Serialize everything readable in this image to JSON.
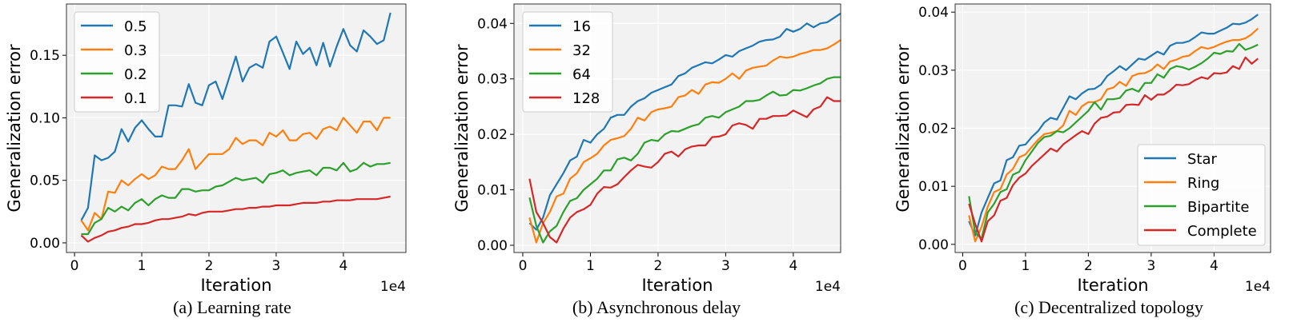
{
  "colors": {
    "c0": "#1f77b4",
    "c1": "#ff7f0e",
    "c2": "#2ca02c",
    "c3": "#d62728",
    "plot_bg": "#f2f2f2"
  },
  "chart_data": [
    {
      "type": "line",
      "caption": "(a) Learning rate",
      "xlabel": "Iteration",
      "ylabel": "Generalization error",
      "x_scale_label": "1e4",
      "xlim": [
        -0.12,
        4.93
      ],
      "ylim": [
        -0.0077,
        0.191
      ],
      "xticks": [
        0,
        1,
        2,
        3,
        4
      ],
      "xtick_labels": [
        "0",
        "1",
        "2",
        "3",
        "4"
      ],
      "yticks": [
        0,
        0.05,
        0.1,
        0.15
      ],
      "ytick_labels": [
        "0.00",
        "0.05",
        "0.10",
        "0.15"
      ],
      "legend_position": "upper-left",
      "grid": true,
      "x_step": 0.1,
      "x_start": 0.1,
      "series": [
        {
          "name": "0.5",
          "values": [
            0.018,
            0.028,
            0.07,
            0.066,
            0.068,
            0.073,
            0.091,
            0.081,
            0.092,
            0.098,
            0.091,
            0.085,
            0.085,
            0.11,
            0.11,
            0.109,
            0.127,
            0.112,
            0.11,
            0.126,
            0.129,
            0.115,
            0.132,
            0.149,
            0.129,
            0.14,
            0.143,
            0.14,
            0.161,
            0.165,
            0.152,
            0.139,
            0.161,
            0.151,
            0.156,
            0.142,
            0.16,
            0.141,
            0.157,
            0.171,
            0.158,
            0.153,
            0.17,
            0.165,
            0.159,
            0.162,
            0.184
          ]
        },
        {
          "name": "0.3",
          "values": [
            0.018,
            0.01,
            0.024,
            0.019,
            0.041,
            0.04,
            0.05,
            0.046,
            0.051,
            0.055,
            0.051,
            0.054,
            0.061,
            0.059,
            0.059,
            0.066,
            0.075,
            0.059,
            0.065,
            0.071,
            0.071,
            0.071,
            0.075,
            0.084,
            0.079,
            0.082,
            0.082,
            0.078,
            0.088,
            0.085,
            0.09,
            0.082,
            0.082,
            0.087,
            0.088,
            0.083,
            0.091,
            0.093,
            0.09,
            0.1,
            0.094,
            0.088,
            0.097,
            0.097,
            0.09,
            0.1,
            0.1
          ]
        },
        {
          "name": "0.2",
          "values": [
            0.007,
            0.007,
            0.016,
            0.019,
            0.028,
            0.025,
            0.029,
            0.026,
            0.032,
            0.035,
            0.03,
            0.035,
            0.038,
            0.036,
            0.036,
            0.043,
            0.043,
            0.041,
            0.042,
            0.042,
            0.045,
            0.046,
            0.049,
            0.052,
            0.05,
            0.051,
            0.052,
            0.048,
            0.055,
            0.056,
            0.058,
            0.054,
            0.056,
            0.057,
            0.058,
            0.054,
            0.06,
            0.06,
            0.058,
            0.064,
            0.057,
            0.059,
            0.064,
            0.061,
            0.063,
            0.063,
            0.064
          ]
        },
        {
          "name": "0.1",
          "values": [
            0.006,
            0.001,
            0.004,
            0.006,
            0.009,
            0.01,
            0.012,
            0.013,
            0.015,
            0.015,
            0.016,
            0.018,
            0.019,
            0.019,
            0.02,
            0.021,
            0.023,
            0.022,
            0.024,
            0.025,
            0.025,
            0.025,
            0.026,
            0.027,
            0.027,
            0.028,
            0.028,
            0.029,
            0.029,
            0.03,
            0.03,
            0.03,
            0.031,
            0.032,
            0.032,
            0.032,
            0.033,
            0.033,
            0.034,
            0.034,
            0.034,
            0.035,
            0.035,
            0.035,
            0.035,
            0.036,
            0.037
          ]
        }
      ]
    },
    {
      "type": "line",
      "caption": "(b) Asynchronous delay",
      "xlabel": "Iteration",
      "ylabel": "Generalization error",
      "x_scale_label": "1e4",
      "xlim": [
        -0.13,
        4.7
      ],
      "ylim": [
        -0.0013,
        0.0435
      ],
      "xticks": [
        0,
        1,
        2,
        3,
        4
      ],
      "xtick_labels": [
        "0",
        "1",
        "2",
        "3",
        "4"
      ],
      "yticks": [
        0,
        0.01,
        0.02,
        0.03,
        0.04
      ],
      "ytick_labels": [
        "0.00",
        "0.01",
        "0.02",
        "0.03",
        "0.04"
      ],
      "legend_position": "upper-left",
      "grid": true,
      "x_step": 0.1,
      "x_start": 0.1,
      "series": [
        {
          "name": "16",
          "values": [
            0.004,
            0.0028,
            0.005,
            0.009,
            0.011,
            0.013,
            0.0153,
            0.016,
            0.019,
            0.0185,
            0.02,
            0.021,
            0.023,
            0.0235,
            0.0235,
            0.025,
            0.026,
            0.0265,
            0.0275,
            0.028,
            0.0285,
            0.029,
            0.0305,
            0.031,
            0.032,
            0.0325,
            0.033,
            0.0328,
            0.0335,
            0.0343,
            0.034,
            0.035,
            0.0355,
            0.036,
            0.0367,
            0.037,
            0.0371,
            0.0376,
            0.039,
            0.0385,
            0.039,
            0.04,
            0.0393,
            0.04,
            0.0402,
            0.041,
            0.0418
          ]
        },
        {
          "name": "32",
          "values": [
            0.005,
            0.0005,
            0.004,
            0.006,
            0.0088,
            0.0093,
            0.012,
            0.013,
            0.015,
            0.0157,
            0.0165,
            0.018,
            0.019,
            0.0193,
            0.0197,
            0.021,
            0.023,
            0.0225,
            0.024,
            0.0245,
            0.0247,
            0.025,
            0.0267,
            0.027,
            0.028,
            0.0273,
            0.029,
            0.0294,
            0.0293,
            0.03,
            0.031,
            0.03,
            0.0315,
            0.032,
            0.0322,
            0.0324,
            0.0333,
            0.034,
            0.0338,
            0.034,
            0.0345,
            0.0348,
            0.0352,
            0.0352,
            0.0355,
            0.0362,
            0.037
          ]
        },
        {
          "name": "64",
          "values": [
            0.0086,
            0.0035,
            0.0005,
            0.0025,
            0.0035,
            0.006,
            0.008,
            0.0085,
            0.01,
            0.011,
            0.012,
            0.0135,
            0.0135,
            0.0155,
            0.0158,
            0.0153,
            0.0165,
            0.0185,
            0.019,
            0.0188,
            0.02,
            0.0206,
            0.0205,
            0.021,
            0.0215,
            0.0218,
            0.023,
            0.0233,
            0.023,
            0.024,
            0.0245,
            0.025,
            0.026,
            0.026,
            0.0262,
            0.027,
            0.0277,
            0.027,
            0.0271,
            0.028,
            0.0279,
            0.0283,
            0.0288,
            0.0292,
            0.03,
            0.0303,
            0.0303
          ]
        },
        {
          "name": "128",
          "values": [
            0.012,
            0.006,
            0.004,
            0.0015,
            0.0005,
            0.003,
            0.005,
            0.006,
            0.0065,
            0.0073,
            0.0093,
            0.0105,
            0.0104,
            0.011,
            0.0123,
            0.0135,
            0.0145,
            0.0142,
            0.014,
            0.015,
            0.0165,
            0.0169,
            0.016,
            0.0173,
            0.0178,
            0.018,
            0.018,
            0.0195,
            0.0196,
            0.02,
            0.0216,
            0.022,
            0.0217,
            0.021,
            0.0228,
            0.0228,
            0.0233,
            0.0233,
            0.0234,
            0.0243,
            0.0237,
            0.0231,
            0.0245,
            0.025,
            0.0267,
            0.026,
            0.026
          ]
        }
      ]
    },
    {
      "type": "line",
      "caption": "(c) Decentralized topology",
      "xlabel": "Iteration",
      "ylabel": "Generalization error",
      "x_scale_label": "1e4",
      "xlim": [
        -0.12,
        4.9
      ],
      "ylim": [
        -0.0014,
        0.0414
      ],
      "xticks": [
        0,
        1,
        2,
        3,
        4
      ],
      "xtick_labels": [
        "0",
        "1",
        "2",
        "3",
        "4"
      ],
      "yticks": [
        0,
        0.01,
        0.02,
        0.03,
        0.04
      ],
      "ytick_labels": [
        "0.00",
        "0.01",
        "0.02",
        "0.03",
        "0.04"
      ],
      "legend_position": "lower-right",
      "grid": true,
      "x_step": 0.1,
      "x_start": 0.1,
      "series": [
        {
          "name": "Star",
          "values": [
            0.004,
            0.0015,
            0.0055,
            0.008,
            0.0105,
            0.011,
            0.0145,
            0.015,
            0.017,
            0.0172,
            0.0185,
            0.0195,
            0.021,
            0.0218,
            0.0215,
            0.0235,
            0.0255,
            0.025,
            0.026,
            0.0267,
            0.0268,
            0.0275,
            0.029,
            0.0298,
            0.0307,
            0.03,
            0.031,
            0.032,
            0.0318,
            0.0325,
            0.0332,
            0.0327,
            0.0342,
            0.0347,
            0.0347,
            0.035,
            0.0357,
            0.0365,
            0.0363,
            0.0363,
            0.0368,
            0.0373,
            0.038,
            0.0379,
            0.0382,
            0.0388,
            0.0396
          ]
        },
        {
          "name": "Ring",
          "values": [
            0.005,
            0.0005,
            0.003,
            0.0065,
            0.009,
            0.0095,
            0.012,
            0.013,
            0.015,
            0.0155,
            0.0168,
            0.018,
            0.019,
            0.0192,
            0.0195,
            0.0205,
            0.023,
            0.0223,
            0.0238,
            0.0245,
            0.0245,
            0.025,
            0.0267,
            0.027,
            0.028,
            0.0273,
            0.029,
            0.0294,
            0.0295,
            0.03,
            0.031,
            0.0302,
            0.0315,
            0.0318,
            0.0323,
            0.0325,
            0.0333,
            0.034,
            0.0337,
            0.034,
            0.0345,
            0.0349,
            0.0352,
            0.0352,
            0.0355,
            0.0362,
            0.0372
          ]
        },
        {
          "name": "Bipartite",
          "values": [
            0.0083,
            0.002,
            0.001,
            0.0055,
            0.007,
            0.009,
            0.0095,
            0.012,
            0.0125,
            0.0145,
            0.016,
            0.0175,
            0.0185,
            0.0187,
            0.0195,
            0.0193,
            0.02,
            0.021,
            0.022,
            0.023,
            0.0245,
            0.0232,
            0.025,
            0.025,
            0.0252,
            0.0265,
            0.0268,
            0.0263,
            0.0278,
            0.0278,
            0.0293,
            0.0287,
            0.0302,
            0.0307,
            0.0305,
            0.0301,
            0.0306,
            0.0312,
            0.032,
            0.033,
            0.0328,
            0.0333,
            0.0332,
            0.0345,
            0.0335,
            0.0339,
            0.0344
          ]
        },
        {
          "name": "Complete",
          "values": [
            0.007,
            0.0035,
            0.0005,
            0.004,
            0.005,
            0.0075,
            0.008,
            0.0102,
            0.0115,
            0.0122,
            0.0135,
            0.0145,
            0.0155,
            0.0165,
            0.016,
            0.0172,
            0.018,
            0.0188,
            0.0195,
            0.019,
            0.0208,
            0.0218,
            0.022,
            0.0227,
            0.0228,
            0.024,
            0.0241,
            0.024,
            0.0257,
            0.0249,
            0.0258,
            0.0258,
            0.0265,
            0.0275,
            0.0274,
            0.0276,
            0.0283,
            0.0288,
            0.0285,
            0.0295,
            0.0294,
            0.0296,
            0.0307,
            0.0302,
            0.0322,
            0.0311,
            0.032
          ]
        }
      ]
    }
  ]
}
